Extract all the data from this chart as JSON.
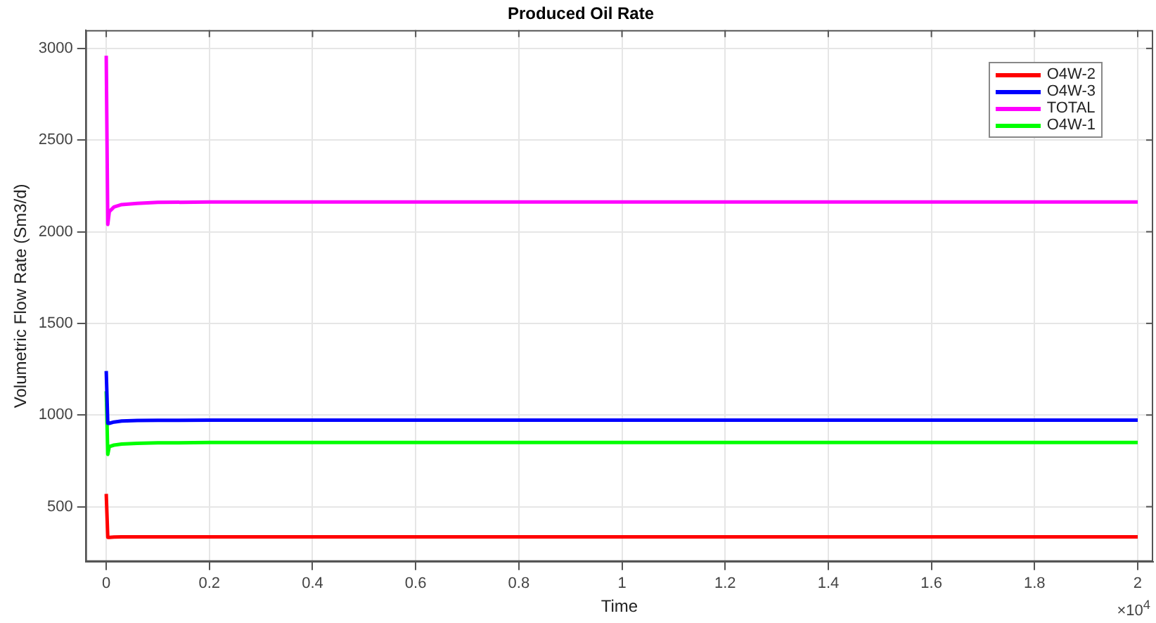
{
  "chart_data": {
    "type": "line",
    "title": "Produced Oil Rate",
    "xlabel": "Time",
    "ylabel": "Volumetric Flow Rate (Sm3/d)",
    "x": [
      0,
      0.003,
      0.006,
      0.015,
      0.03,
      0.06,
      0.1,
      0.2,
      0.5,
      1,
      2
    ],
    "series": [
      {
        "name": "O4W-2",
        "color": "#ff0000",
        "values": [
          570,
          333,
          333,
          334,
          335,
          335,
          335,
          335,
          335,
          335,
          335
        ]
      },
      {
        "name": "O4W-3",
        "color": "#0000ff",
        "values": [
          1240,
          955,
          955,
          962,
          967,
          970,
          971,
          972,
          972,
          972,
          972
        ]
      },
      {
        "name": "TOTAL",
        "color": "#ff00ff",
        "values": [
          2960,
          2040,
          2110,
          2135,
          2148,
          2155,
          2160,
          2162,
          2162,
          2162,
          2162
        ]
      },
      {
        "name": "O4W-1",
        "color": "#00ff00",
        "values": [
          1130,
          785,
          828,
          836,
          842,
          846,
          848,
          850,
          850,
          850,
          850
        ]
      }
    ],
    "xlim": [
      -0.04,
      2.03
    ],
    "xticks": [
      0,
      0.2,
      0.4,
      0.6,
      0.8,
      1,
      1.2,
      1.4,
      1.6,
      1.8,
      2
    ],
    "ylim": [
      200,
      3100
    ],
    "yticks": [
      500,
      1000,
      1500,
      2000,
      2500,
      3000
    ],
    "annotations": [
      "×10$^{4}$"
    ],
    "grid": true,
    "legend": "top right",
    "line_style": "solid"
  }
}
